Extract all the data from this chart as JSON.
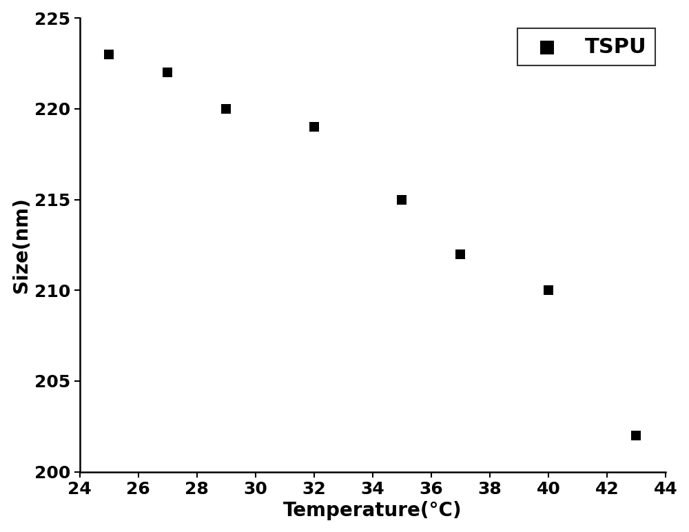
{
  "x": [
    25,
    27,
    29,
    32,
    35,
    37,
    40,
    43
  ],
  "y": [
    223,
    222,
    220,
    219,
    215,
    212,
    210,
    202
  ],
  "xlabel": "Temperature(°C)",
  "ylabel": "Size(nm)",
  "xlim": [
    24,
    44
  ],
  "ylim": [
    200,
    225
  ],
  "xticks": [
    24,
    26,
    28,
    30,
    32,
    34,
    36,
    38,
    40,
    42,
    44
  ],
  "yticks": [
    200,
    205,
    210,
    215,
    220,
    225
  ],
  "legend_label": "TSPU",
  "marker": "s",
  "marker_color": "#000000",
  "marker_size": 10,
  "label_fontsize": 20,
  "tick_fontsize": 18,
  "legend_fontsize": 22,
  "spine_linewidth": 1.8
}
